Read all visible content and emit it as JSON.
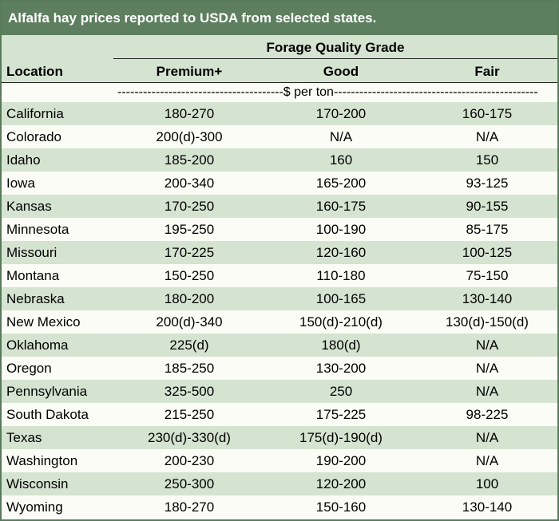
{
  "title": "Alfalfa hay prices reported to USDA from selected states.",
  "header": {
    "group_label": "Forage Quality Grade",
    "location_label": "Location",
    "columns": [
      "Premium+",
      "Good",
      "Fair"
    ]
  },
  "unit_line": "---------------------------------------$ per ton------------------------------------------------",
  "rows": [
    {
      "location": "California",
      "premium": "180-270",
      "good": "170-200",
      "fair": "160-175"
    },
    {
      "location": "Colorado",
      "premium": "200(d)-300",
      "good": "N/A",
      "fair": "N/A"
    },
    {
      "location": "Idaho",
      "premium": "185-200",
      "good": "160",
      "fair": "150"
    },
    {
      "location": "Iowa",
      "premium": "200-340",
      "good": "165-200",
      "fair": "93-125"
    },
    {
      "location": "Kansas",
      "premium": "170-250",
      "good": "160-175",
      "fair": "90-155"
    },
    {
      "location": "Minnesota",
      "premium": "195-250",
      "good": "100-190",
      "fair": "85-175"
    },
    {
      "location": "Missouri",
      "premium": "170-225",
      "good": "120-160",
      "fair": "100-125"
    },
    {
      "location": "Montana",
      "premium": "150-250",
      "good": "110-180",
      "fair": "75-150"
    },
    {
      "location": "Nebraska",
      "premium": "180-200",
      "good": "100-165",
      "fair": "130-140"
    },
    {
      "location": "New Mexico",
      "premium": "200(d)-340",
      "good": "150(d)-210(d)",
      "fair": "130(d)-150(d)"
    },
    {
      "location": "Oklahoma",
      "premium": "225(d)",
      "good": "180(d)",
      "fair": "N/A"
    },
    {
      "location": "Oregon",
      "premium": "185-250",
      "good": "130-200",
      "fair": "N/A"
    },
    {
      "location": "Pennsylvania",
      "premium": "325-500",
      "good": "250",
      "fair": "N/A"
    },
    {
      "location": "South Dakota",
      "premium": "215-250",
      "good": "175-225",
      "fair": "98-225"
    },
    {
      "location": "Texas",
      "premium": "230(d)-330(d)",
      "good": "175(d)-190(d)",
      "fair": "N/A"
    },
    {
      "location": "Washington",
      "premium": "200-230",
      "good": "190-200",
      "fair": "N/A"
    },
    {
      "location": "Wisconsin",
      "premium": "250-300",
      "good": "120-200",
      "fair": "100"
    },
    {
      "location": "Wyoming",
      "premium": "180-270",
      "good": "150-160",
      "fair": "130-140"
    }
  ],
  "colors": {
    "title_bg": "#5d7f5f",
    "band": "#d5e3d1",
    "light": "#fbfcf6"
  }
}
